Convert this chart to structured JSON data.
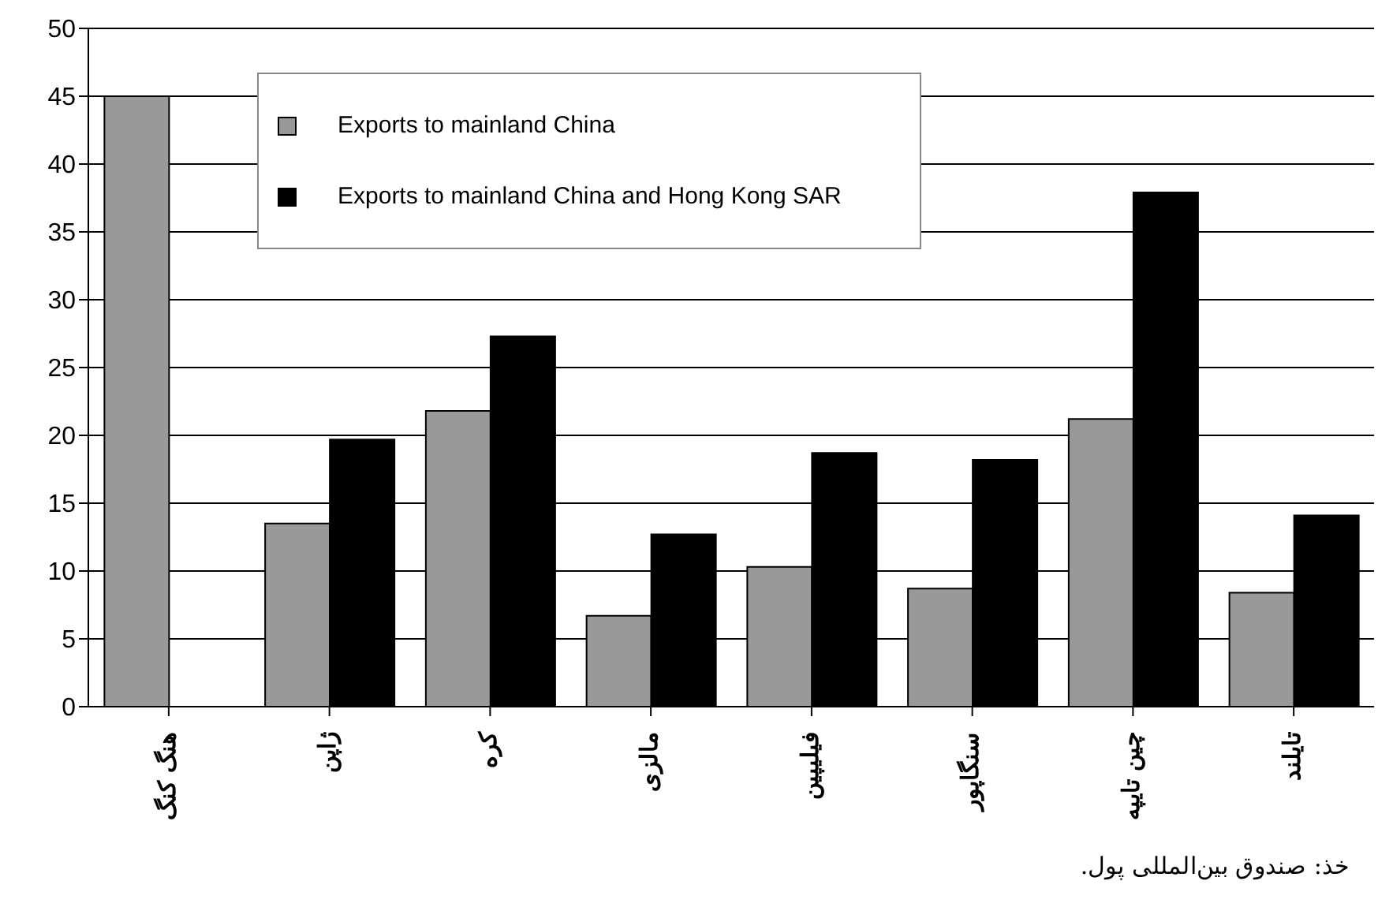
{
  "chart_data": {
    "type": "bar",
    "categories": [
      "هنگ کنگ",
      "ژاپن",
      "کره",
      "مالزی",
      "فیلیپین",
      "سنگاپور",
      "چین تایپه",
      "تایلند"
    ],
    "series": [
      {
        "name": "Exports to mainland China",
        "color": "#999999",
        "values": [
          45,
          13.5,
          21.8,
          6.7,
          10.3,
          8.7,
          21.2,
          8.4
        ]
      },
      {
        "name": "Exports to mainland China and Hong Kong SAR",
        "color": "#000000",
        "values": [
          null,
          19.7,
          27.3,
          12.7,
          18.7,
          18.2,
          37.9,
          14.1
        ]
      }
    ],
    "ylim": [
      0,
      50
    ],
    "yticks": [
      0,
      5,
      10,
      15,
      20,
      25,
      30,
      35,
      40,
      45,
      50
    ],
    "grid": "y",
    "legend": "top left",
    "annotations": [
      "خذ: صندوق بین‌المللی پول."
    ]
  }
}
